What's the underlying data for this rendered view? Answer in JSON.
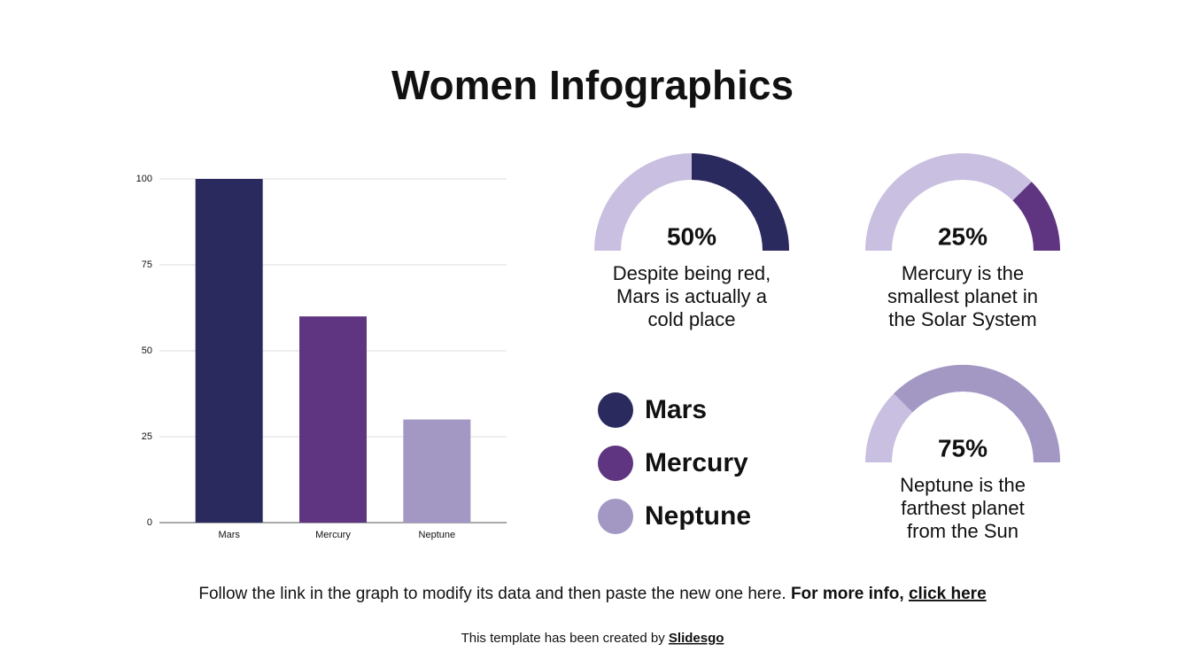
{
  "title": "Women Infographics",
  "chart_data": [
    {
      "type": "bar",
      "categories": [
        "Mars",
        "Mercury",
        "Neptune"
      ],
      "values": [
        100,
        60,
        30
      ],
      "colors": [
        "#2b2a5e",
        "#5f3480",
        "#a397c4"
      ],
      "ylim": [
        0,
        100
      ],
      "yticks": [
        0,
        25,
        50,
        75,
        100
      ],
      "grid": true
    },
    {
      "type": "gauge",
      "values": [
        50
      ],
      "value_labels": [
        "50%"
      ],
      "color": "#2b2a5e",
      "track_color": "#c9bfe0",
      "caption": [
        "Despite being red,",
        "Mars is actually a",
        "cold place"
      ]
    },
    {
      "type": "gauge",
      "values": [
        25
      ],
      "value_labels": [
        "25%"
      ],
      "color": "#5f3480",
      "track_color": "#c9bfe0",
      "caption": [
        "Mercury is the",
        "smallest planet in",
        "the Solar System"
      ]
    },
    {
      "type": "gauge",
      "values": [
        75
      ],
      "value_labels": [
        "75%"
      ],
      "color": "#a397c4",
      "track_color": "#c9bfe0",
      "caption": [
        "Neptune is the",
        "farthest planet",
        "from the Sun"
      ]
    }
  ],
  "footer": {
    "note": "Follow the link in the graph to modify its data and then paste the new one here.",
    "more": "For more info,",
    "link": "click here",
    "credit": "This template has been created by",
    "brand": "Slidesgo"
  }
}
